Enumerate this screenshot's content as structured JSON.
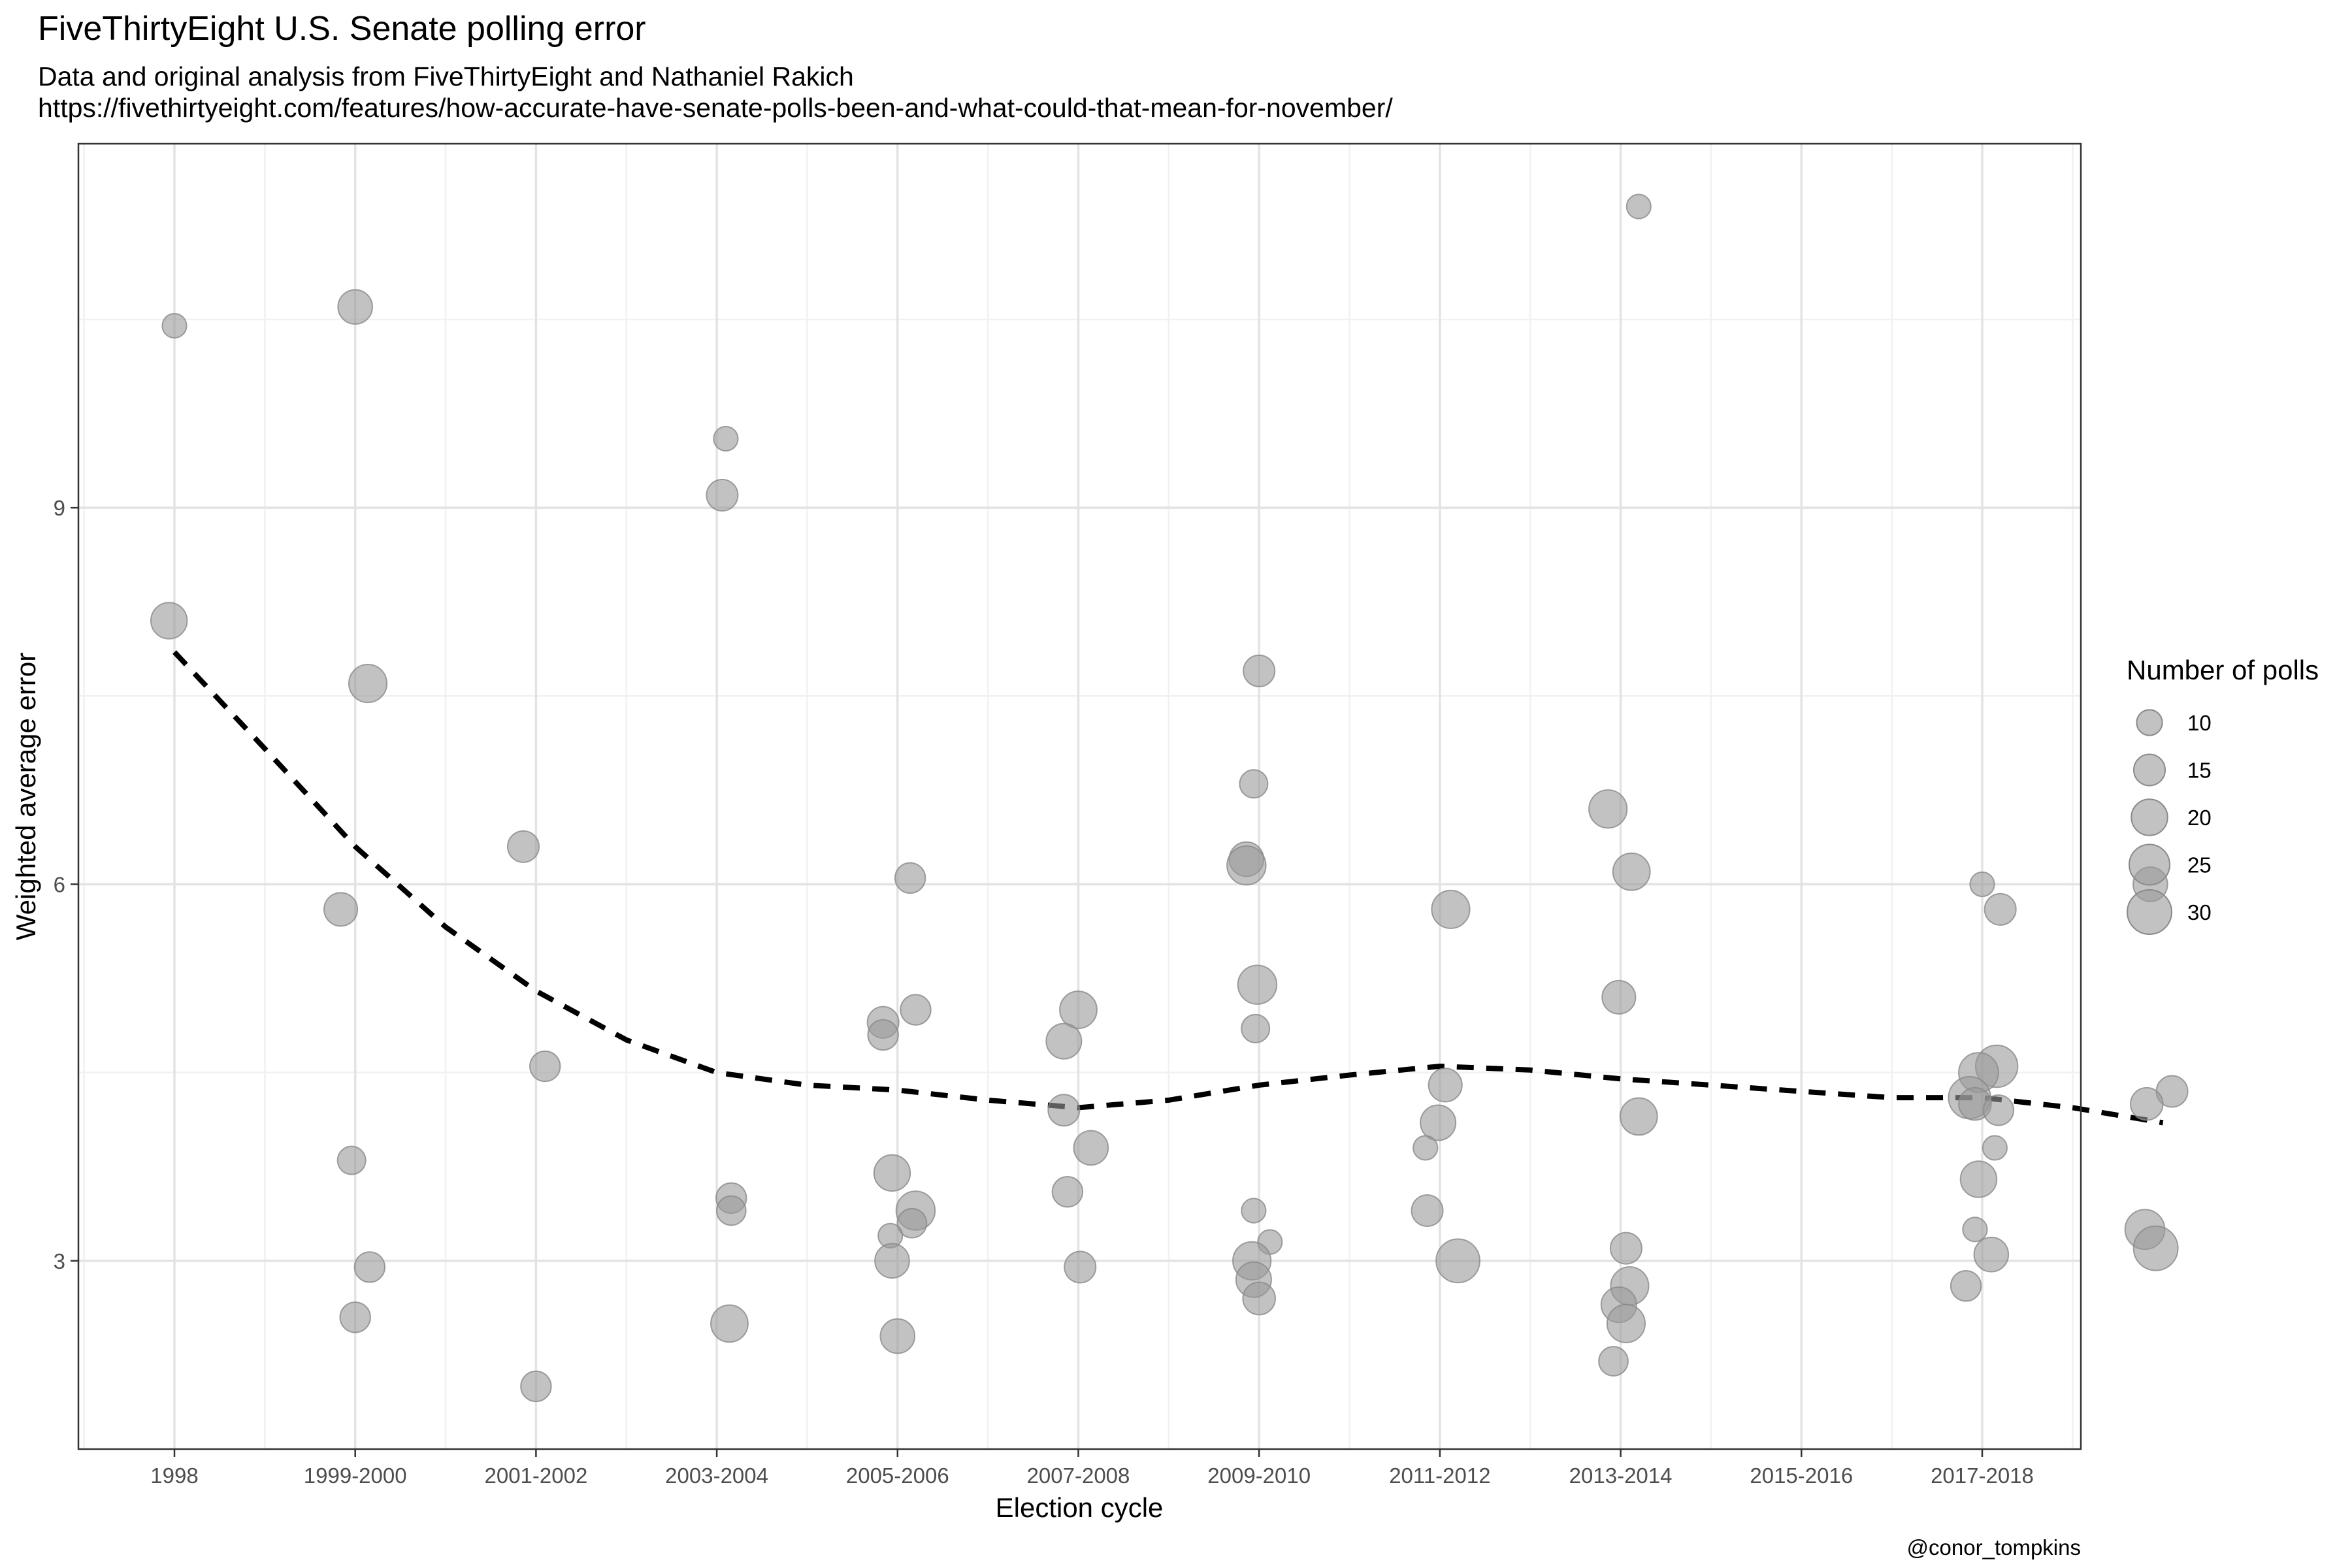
{
  "chart_data": {
    "type": "scatter",
    "title": "FiveThirtyEight U.S. Senate polling error",
    "subtitle": "Data and original analysis from FiveThirtyEight and Nathaniel Rakich",
    "subtitle_url": "https://fivethirtyeight.com/features/how-accurate-have-senate-polls-been-and-what-could-that-mean-for-november/",
    "caption": "@conor_tompkins",
    "xlabel": "Election cycle",
    "ylabel": "Weighted average error",
    "categories": [
      "1998",
      "1999-2000",
      "2001-2002",
      "2003-2004",
      "2005-2006",
      "2007-2008",
      "2009-2010",
      "2011-2012",
      "2013-2014",
      "2015-2016",
      "2017-2018"
    ],
    "ylim": [
      1.5,
      11.9
    ],
    "yticks": [
      3,
      6,
      9
    ],
    "grid": true,
    "point_color": "#999999",
    "legend": {
      "title": "Number of polls",
      "position": "right",
      "sizes": [
        10,
        15,
        20,
        25,
        30
      ]
    },
    "points": [
      {
        "x": 0.0,
        "y": 10.45,
        "n": 9
      },
      {
        "x": -0.03,
        "y": 8.1,
        "n": 20
      },
      {
        "x": 1.0,
        "y": 10.6,
        "n": 18
      },
      {
        "x": 1.07,
        "y": 7.6,
        "n": 22
      },
      {
        "x": 0.92,
        "y": 5.8,
        "n": 17
      },
      {
        "x": 0.98,
        "y": 3.8,
        "n": 12
      },
      {
        "x": 1.08,
        "y": 2.95,
        "n": 14
      },
      {
        "x": 1.0,
        "y": 2.55,
        "n": 14
      },
      {
        "x": 1.93,
        "y": 6.3,
        "n": 15
      },
      {
        "x": 2.05,
        "y": 4.55,
        "n": 14
      },
      {
        "x": 2.0,
        "y": 2.0,
        "n": 14
      },
      {
        "x": 3.05,
        "y": 9.55,
        "n": 9
      },
      {
        "x": 3.03,
        "y": 9.1,
        "n": 15
      },
      {
        "x": 3.08,
        "y": 3.5,
        "n": 14
      },
      {
        "x": 3.08,
        "y": 3.4,
        "n": 13
      },
      {
        "x": 3.07,
        "y": 2.5,
        "n": 21
      },
      {
        "x": 4.07,
        "y": 6.05,
        "n": 14
      },
      {
        "x": 3.92,
        "y": 4.9,
        "n": 15
      },
      {
        "x": 3.92,
        "y": 4.8,
        "n": 14
      },
      {
        "x": 4.1,
        "y": 5.0,
        "n": 14
      },
      {
        "x": 3.97,
        "y": 3.7,
        "n": 20
      },
      {
        "x": 4.1,
        "y": 3.4,
        "n": 23
      },
      {
        "x": 4.08,
        "y": 3.3,
        "n": 13
      },
      {
        "x": 3.96,
        "y": 3.2,
        "n": 9
      },
      {
        "x": 3.97,
        "y": 3.0,
        "n": 18
      },
      {
        "x": 4.0,
        "y": 2.4,
        "n": 18
      },
      {
        "x": 5.0,
        "y": 5.0,
        "n": 21
      },
      {
        "x": 4.92,
        "y": 4.75,
        "n": 19
      },
      {
        "x": 4.92,
        "y": 4.2,
        "n": 15
      },
      {
        "x": 5.07,
        "y": 3.9,
        "n": 18
      },
      {
        "x": 4.94,
        "y": 3.55,
        "n": 14
      },
      {
        "x": 5.01,
        "y": 2.95,
        "n": 15
      },
      {
        "x": 6.0,
        "y": 7.7,
        "n": 15
      },
      {
        "x": 5.97,
        "y": 6.8,
        "n": 12
      },
      {
        "x": 5.93,
        "y": 6.2,
        "n": 18
      },
      {
        "x": 5.93,
        "y": 6.15,
        "n": 23
      },
      {
        "x": 5.99,
        "y": 5.2,
        "n": 23
      },
      {
        "x": 5.98,
        "y": 4.85,
        "n": 12
      },
      {
        "x": 5.97,
        "y": 3.4,
        "n": 9
      },
      {
        "x": 6.06,
        "y": 3.15,
        "n": 9
      },
      {
        "x": 5.96,
        "y": 3.0,
        "n": 22
      },
      {
        "x": 5.97,
        "y": 2.85,
        "n": 19
      },
      {
        "x": 6.0,
        "y": 2.7,
        "n": 16
      },
      {
        "x": 7.06,
        "y": 5.8,
        "n": 22
      },
      {
        "x": 7.03,
        "y": 4.4,
        "n": 17
      },
      {
        "x": 6.99,
        "y": 4.1,
        "n": 19
      },
      {
        "x": 6.92,
        "y": 3.9,
        "n": 9
      },
      {
        "x": 6.93,
        "y": 3.4,
        "n": 15
      },
      {
        "x": 7.1,
        "y": 3.0,
        "n": 29
      },
      {
        "x": 8.1,
        "y": 11.4,
        "n": 9
      },
      {
        "x": 7.93,
        "y": 6.6,
        "n": 22
      },
      {
        "x": 8.06,
        "y": 6.1,
        "n": 21
      },
      {
        "x": 7.99,
        "y": 5.1,
        "n": 17
      },
      {
        "x": 8.1,
        "y": 4.15,
        "n": 21
      },
      {
        "x": 8.03,
        "y": 3.1,
        "n": 15
      },
      {
        "x": 8.05,
        "y": 2.8,
        "n": 22
      },
      {
        "x": 7.99,
        "y": 2.65,
        "n": 19
      },
      {
        "x": 8.03,
        "y": 2.5,
        "n": 22
      },
      {
        "x": 7.96,
        "y": 2.2,
        "n": 13
      },
      {
        "x": 10.0,
        "y": 6.0,
        "n": 9
      },
      {
        "x": 10.1,
        "y": 5.8,
        "n": 15
      },
      {
        "x": 10.08,
        "y": 4.55,
        "n": 27
      },
      {
        "x": 9.98,
        "y": 4.5,
        "n": 24
      },
      {
        "x": 9.93,
        "y": 4.3,
        "n": 27
      },
      {
        "x": 9.96,
        "y": 4.25,
        "n": 16
      },
      {
        "x": 10.09,
        "y": 4.2,
        "n": 14
      },
      {
        "x": 10.07,
        "y": 3.9,
        "n": 9
      },
      {
        "x": 9.98,
        "y": 3.65,
        "n": 20
      },
      {
        "x": 9.96,
        "y": 3.25,
        "n": 9
      },
      {
        "x": 10.05,
        "y": 3.05,
        "n": 18
      },
      {
        "x": 9.91,
        "y": 2.8,
        "n": 14
      },
      {
        "x": 10.93,
        "y": 6.0,
        "n": 18
      },
      {
        "x": 11.05,
        "y": 4.35,
        "n": 15
      },
      {
        "x": 10.91,
        "y": 4.25,
        "n": 16
      },
      {
        "x": 10.9,
        "y": 3.25,
        "n": 24
      },
      {
        "x": 10.96,
        "y": 3.1,
        "n": 30
      }
    ],
    "trend": {
      "style": "dashed",
      "x": [
        0,
        0.5,
        1,
        1.5,
        2,
        2.5,
        3,
        3.5,
        4,
        4.5,
        5,
        5.5,
        6,
        6.5,
        7,
        7.5,
        8,
        8.5,
        9,
        9.5,
        10,
        10.5,
        11
      ],
      "y": [
        7.85,
        7.08,
        6.3,
        5.66,
        5.15,
        4.76,
        4.5,
        4.4,
        4.36,
        4.28,
        4.22,
        4.28,
        4.4,
        4.48,
        4.55,
        4.52,
        4.45,
        4.4,
        4.35,
        4.3,
        4.3,
        4.22,
        4.1
      ]
    }
  }
}
